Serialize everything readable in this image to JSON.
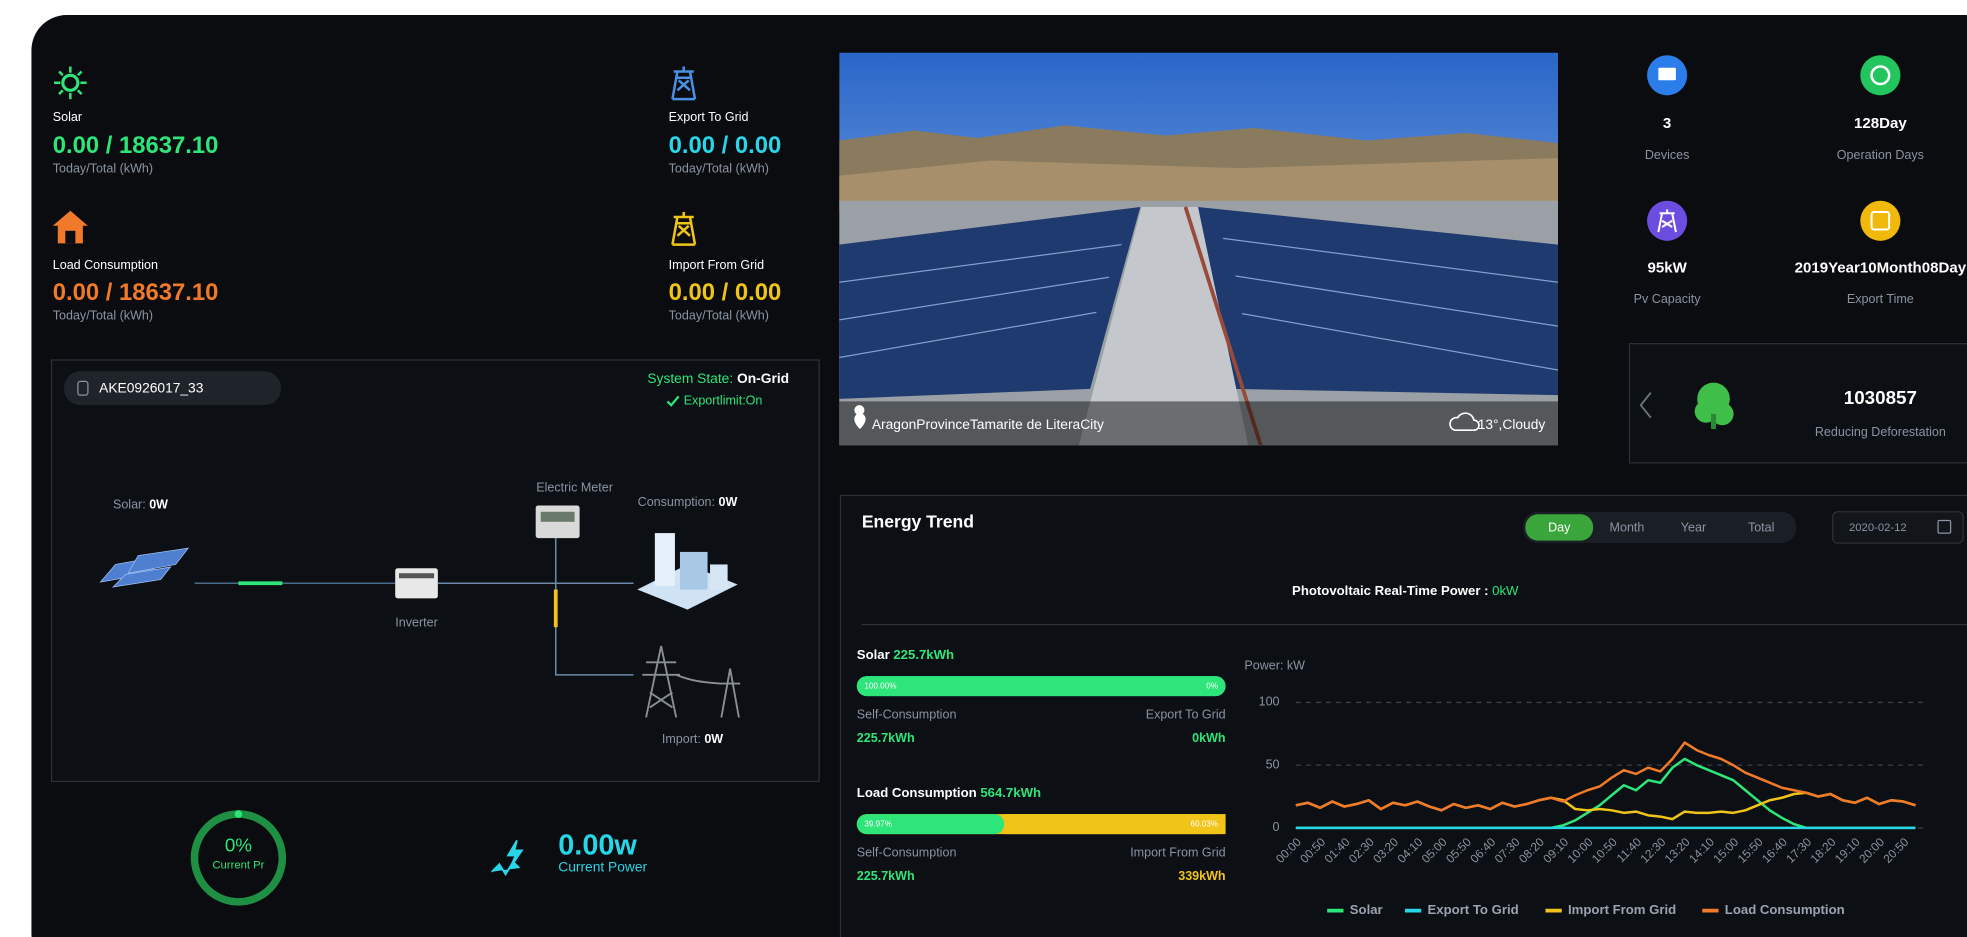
{
  "summary": [
    {
      "label": "Solar",
      "value": "0.00 / 18637.10",
      "unit": "Today/Total (kWh)"
    },
    {
      "label": "Export To Grid",
      "value": "0.00 / 0.00",
      "unit": "Today/Total (kWh)"
    },
    {
      "label": "Load Consumption",
      "value": "0.00 / 18637.10",
      "unit": "Today/Total (kWh)"
    },
    {
      "label": "Import From Grid",
      "value": "0.00 / 0.00",
      "unit": "Today/Total (kWh)"
    }
  ],
  "flow": {
    "device": "AKE0926017_33",
    "state_label": "System State:",
    "state": "On-Grid",
    "exportlimit": "Exportlimit:On",
    "solar_label": "Solar:",
    "solar": "0W",
    "meter": "Electric Meter",
    "consumption_label": "Consumption:",
    "consumption": "0W",
    "inverter": "Inverter",
    "import_label": "Import:",
    "import": "0W"
  },
  "gauges": {
    "percent": "0%",
    "percent_label": "Current Pr",
    "power": "0.00w",
    "power_label": "Current Power"
  },
  "photo": {
    "location": "AragonProvinceTamarite de LiteraCity",
    "weather": "13°,Cloudy"
  },
  "stats": [
    {
      "value": "3",
      "label": "Devices"
    },
    {
      "value": "128Day",
      "label": "Operation Days"
    },
    {
      "value": "95kW",
      "label": "Pv Capacity"
    },
    {
      "value": "2019Year10Month08Day",
      "label": "Export Time"
    }
  ],
  "carousel": {
    "value": "1030857",
    "label": "Reducing Deforestation"
  },
  "trend": {
    "title": "Energy Trend",
    "tabs": [
      "Day",
      "Month",
      "Year",
      "Total"
    ],
    "date": "2020-02-12",
    "realtime_label": "Photovoltaic Real-Time Power :",
    "realtime": "0kW",
    "solar": {
      "label": "Solar",
      "total": "225.7kWh",
      "self_pct": 100,
      "self_pct_label": "100.00%",
      "other_pct": 0,
      "other_pct_label": "0%",
      "self_label": "Self-Consumption",
      "self": "225.7kWh",
      "other_label": "Export To Grid",
      "other": "0kWh"
    },
    "load": {
      "label": "Load Consumption",
      "total": "564.7kWh",
      "self_pct": 39.97,
      "self_pct_label": "39.97%",
      "other_pct": 60.03,
      "other_pct_label": "60.03%",
      "self_label": "Self-Consumption",
      "self": "225.7kWh",
      "other_label": "Import From Grid",
      "other": "339kWh"
    }
  },
  "chart_data": {
    "type": "line",
    "y_label": "Power: kW",
    "categories": [
      "00:00",
      null,
      "00:50",
      null,
      "01:40",
      null,
      "02:30",
      null,
      "03:20",
      null,
      "04:10",
      null,
      "05:00",
      null,
      "05:50",
      null,
      "06:40",
      null,
      "07:30",
      null,
      "08:20",
      null,
      "09:10",
      null,
      "10:00",
      null,
      "10:50",
      null,
      "11:40",
      null,
      "12:30",
      null,
      "13:20",
      null,
      "14:10",
      null,
      "15:00",
      null,
      "15:50",
      null,
      "16:40",
      null,
      "17:30",
      null,
      "18:20",
      null,
      "19:10",
      null,
      "20:00",
      null,
      "20:50",
      null
    ],
    "series": [
      {
        "name": "Solar",
        "color": "#2ee57a",
        "values": [
          0,
          0,
          0,
          0,
          0,
          0,
          0,
          0,
          0,
          0,
          0,
          0,
          0,
          0,
          0,
          0,
          0,
          0,
          0,
          0,
          0,
          0,
          2,
          6,
          12,
          18,
          26,
          34,
          30,
          38,
          36,
          48,
          55,
          50,
          46,
          42,
          38,
          30,
          22,
          14,
          8,
          3,
          0,
          0,
          0,
          0,
          0,
          0,
          0,
          0,
          0,
          0
        ]
      },
      {
        "name": "Export To Grid",
        "color": "#27d6e8",
        "values": [
          0,
          0,
          0,
          0,
          0,
          0,
          0,
          0,
          0,
          0,
          0,
          0,
          0,
          0,
          0,
          0,
          0,
          0,
          0,
          0,
          0,
          0,
          0,
          0,
          0,
          0,
          0,
          0,
          0,
          0,
          0,
          0,
          0,
          0,
          0,
          0,
          0,
          0,
          0,
          0,
          0,
          0,
          0,
          0,
          0,
          0,
          0,
          0,
          0,
          0,
          0,
          0
        ]
      },
      {
        "name": "Import From Grid",
        "color": "#f0c419",
        "values": [
          18,
          20,
          16,
          21,
          17,
          19,
          22,
          15,
          20,
          18,
          21,
          17,
          14,
          19,
          16,
          18,
          15,
          20,
          17,
          19,
          22,
          24,
          22,
          15,
          14,
          15,
          14,
          12,
          13,
          10,
          9,
          7,
          13,
          12,
          12,
          13,
          12,
          14,
          18,
          22,
          24,
          27,
          28,
          25,
          27,
          22,
          20,
          24,
          19,
          22,
          21,
          18
        ]
      },
      {
        "name": "Load Consumption",
        "color": "#f07a2a",
        "values": [
          18,
          20,
          16,
          21,
          17,
          19,
          22,
          15,
          20,
          18,
          21,
          17,
          14,
          19,
          16,
          18,
          15,
          20,
          17,
          19,
          22,
          24,
          21,
          26,
          30,
          33,
          40,
          46,
          43,
          48,
          45,
          55,
          68,
          62,
          58,
          55,
          50,
          44,
          40,
          36,
          32,
          30,
          28,
          25,
          27,
          22,
          20,
          24,
          19,
          22,
          21,
          18
        ]
      }
    ],
    "ylim": [
      0,
      100
    ],
    "yticks": [
      0,
      50,
      100
    ],
    "grid": true
  }
}
